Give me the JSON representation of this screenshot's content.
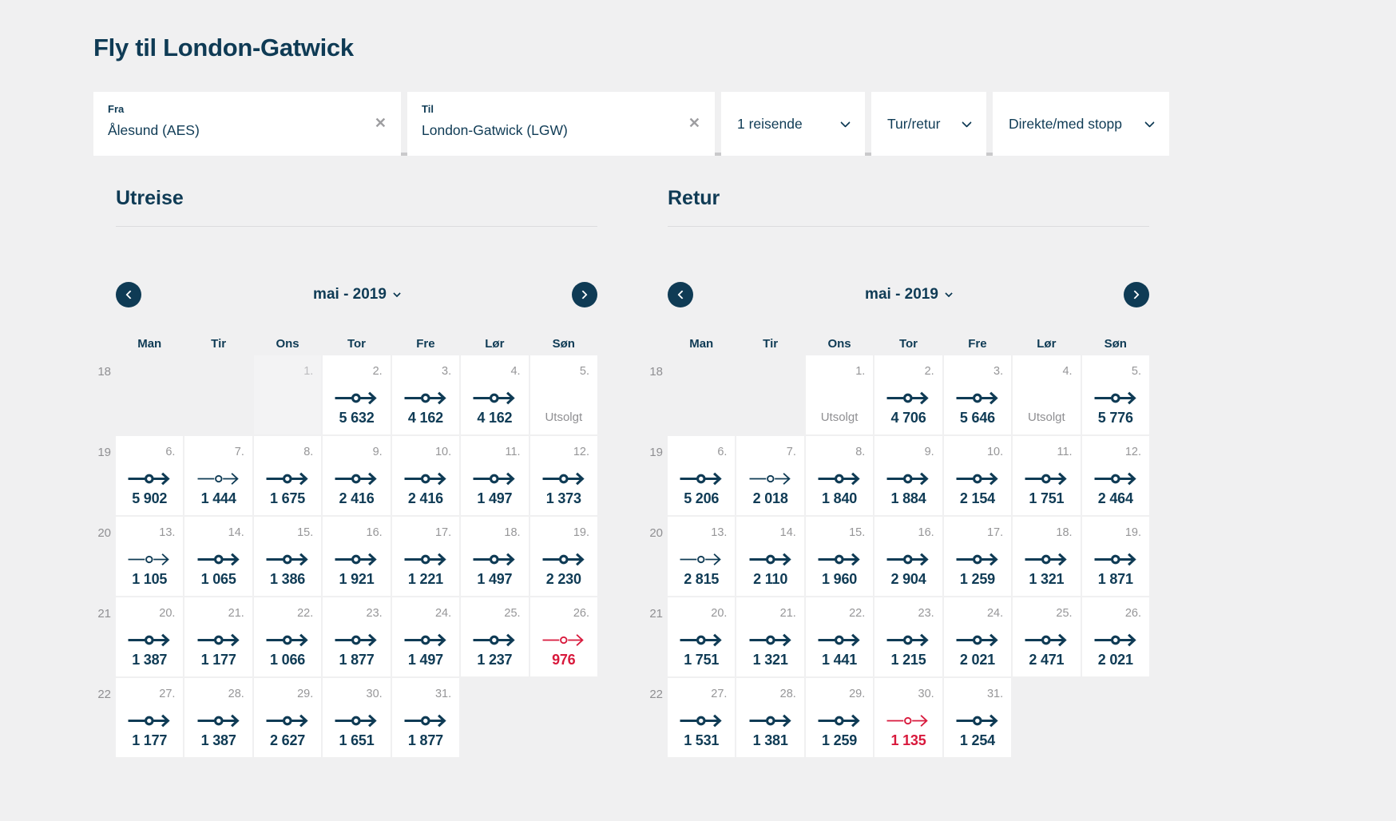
{
  "title": "Fly til London-Gatwick",
  "search": {
    "from_label": "Fra",
    "from_value": "Ålesund (AES)",
    "to_label": "Til",
    "to_value": "London-Gatwick (LGW)",
    "clear_icon": "✕",
    "passengers": "1 reisende",
    "trip_type": "Tur/retur",
    "stops": "Direkte/med stopp"
  },
  "colors": {
    "navy": "#0f3b55",
    "red": "#d8193c",
    "page_bg": "#f0f0f1",
    "cell_bg": "#ffffff",
    "gray_text": "#969698"
  },
  "calendars": [
    {
      "title": "Utreise",
      "month_label": "mai - 2019",
      "day_headers": [
        "Man",
        "Tir",
        "Ons",
        "Tor",
        "Fre",
        "Lør",
        "Søn"
      ],
      "weeks": [
        {
          "week": "18",
          "days": [
            {
              "type": "empty"
            },
            {
              "type": "empty"
            },
            {
              "type": "disabled",
              "day": "1."
            },
            {
              "type": "flight",
              "day": "2.",
              "price": "5 632",
              "icon": "bold"
            },
            {
              "type": "flight",
              "day": "3.",
              "price": "4 162",
              "icon": "bold"
            },
            {
              "type": "flight",
              "day": "4.",
              "price": "4 162",
              "icon": "bold"
            },
            {
              "type": "soldout",
              "day": "5.",
              "label": "Utsolgt"
            }
          ]
        },
        {
          "week": "19",
          "days": [
            {
              "type": "flight",
              "day": "6.",
              "price": "5 902",
              "icon": "bold"
            },
            {
              "type": "flight",
              "day": "7.",
              "price": "1 444",
              "icon": "thin"
            },
            {
              "type": "flight",
              "day": "8.",
              "price": "1 675",
              "icon": "bold"
            },
            {
              "type": "flight",
              "day": "9.",
              "price": "2 416",
              "icon": "bold"
            },
            {
              "type": "flight",
              "day": "10.",
              "price": "2 416",
              "icon": "bold"
            },
            {
              "type": "flight",
              "day": "11.",
              "price": "1 497",
              "icon": "bold"
            },
            {
              "type": "flight",
              "day": "12.",
              "price": "1 373",
              "icon": "bold"
            }
          ]
        },
        {
          "week": "20",
          "days": [
            {
              "type": "flight",
              "day": "13.",
              "price": "1 105",
              "icon": "thin"
            },
            {
              "type": "flight",
              "day": "14.",
              "price": "1 065",
              "icon": "bold"
            },
            {
              "type": "flight",
              "day": "15.",
              "price": "1 386",
              "icon": "bold"
            },
            {
              "type": "flight",
              "day": "16.",
              "price": "1 921",
              "icon": "bold"
            },
            {
              "type": "flight",
              "day": "17.",
              "price": "1 221",
              "icon": "bold"
            },
            {
              "type": "flight",
              "day": "18.",
              "price": "1 497",
              "icon": "bold"
            },
            {
              "type": "flight",
              "day": "19.",
              "price": "2 230",
              "icon": "bold"
            }
          ]
        },
        {
          "week": "21",
          "days": [
            {
              "type": "flight",
              "day": "20.",
              "price": "1 387",
              "icon": "bold"
            },
            {
              "type": "flight",
              "day": "21.",
              "price": "1 177",
              "icon": "bold"
            },
            {
              "type": "flight",
              "day": "22.",
              "price": "1 066",
              "icon": "bold"
            },
            {
              "type": "flight",
              "day": "23.",
              "price": "1 877",
              "icon": "bold"
            },
            {
              "type": "flight",
              "day": "24.",
              "price": "1 497",
              "icon": "bold"
            },
            {
              "type": "flight",
              "day": "25.",
              "price": "1 237",
              "icon": "bold"
            },
            {
              "type": "flight",
              "day": "26.",
              "price": "976",
              "icon": "thin",
              "selected": true
            }
          ]
        },
        {
          "week": "22",
          "days": [
            {
              "type": "flight",
              "day": "27.",
              "price": "1 177",
              "icon": "bold"
            },
            {
              "type": "flight",
              "day": "28.",
              "price": "1 387",
              "icon": "bold"
            },
            {
              "type": "flight",
              "day": "29.",
              "price": "2 627",
              "icon": "bold"
            },
            {
              "type": "flight",
              "day": "30.",
              "price": "1 651",
              "icon": "bold"
            },
            {
              "type": "flight",
              "day": "31.",
              "price": "1 877",
              "icon": "bold"
            },
            {
              "type": "empty"
            },
            {
              "type": "empty"
            }
          ]
        }
      ]
    },
    {
      "title": "Retur",
      "month_label": "mai - 2019",
      "day_headers": [
        "Man",
        "Tir",
        "Ons",
        "Tor",
        "Fre",
        "Lør",
        "Søn"
      ],
      "weeks": [
        {
          "week": "18",
          "days": [
            {
              "type": "empty"
            },
            {
              "type": "empty"
            },
            {
              "type": "soldout",
              "day": "1.",
              "label": "Utsolgt"
            },
            {
              "type": "flight",
              "day": "2.",
              "price": "4 706",
              "icon": "bold"
            },
            {
              "type": "flight",
              "day": "3.",
              "price": "5 646",
              "icon": "bold"
            },
            {
              "type": "soldout",
              "day": "4.",
              "label": "Utsolgt"
            },
            {
              "type": "flight",
              "day": "5.",
              "price": "5 776",
              "icon": "bold"
            }
          ]
        },
        {
          "week": "19",
          "days": [
            {
              "type": "flight",
              "day": "6.",
              "price": "5 206",
              "icon": "bold"
            },
            {
              "type": "flight",
              "day": "7.",
              "price": "2 018",
              "icon": "thin"
            },
            {
              "type": "flight",
              "day": "8.",
              "price": "1 840",
              "icon": "bold"
            },
            {
              "type": "flight",
              "day": "9.",
              "price": "1 884",
              "icon": "bold"
            },
            {
              "type": "flight",
              "day": "10.",
              "price": "2 154",
              "icon": "bold"
            },
            {
              "type": "flight",
              "day": "11.",
              "price": "1 751",
              "icon": "bold"
            },
            {
              "type": "flight",
              "day": "12.",
              "price": "2 464",
              "icon": "bold"
            }
          ]
        },
        {
          "week": "20",
          "days": [
            {
              "type": "flight",
              "day": "13.",
              "price": "2 815",
              "icon": "thin"
            },
            {
              "type": "flight",
              "day": "14.",
              "price": "2 110",
              "icon": "bold"
            },
            {
              "type": "flight",
              "day": "15.",
              "price": "1 960",
              "icon": "bold"
            },
            {
              "type": "flight",
              "day": "16.",
              "price": "2 904",
              "icon": "bold"
            },
            {
              "type": "flight",
              "day": "17.",
              "price": "1 259",
              "icon": "bold"
            },
            {
              "type": "flight",
              "day": "18.",
              "price": "1 321",
              "icon": "bold"
            },
            {
              "type": "flight",
              "day": "19.",
              "price": "1 871",
              "icon": "bold"
            }
          ]
        },
        {
          "week": "21",
          "days": [
            {
              "type": "flight",
              "day": "20.",
              "price": "1 751",
              "icon": "bold"
            },
            {
              "type": "flight",
              "day": "21.",
              "price": "1 321",
              "icon": "bold"
            },
            {
              "type": "flight",
              "day": "22.",
              "price": "1 441",
              "icon": "bold"
            },
            {
              "type": "flight",
              "day": "23.",
              "price": "1 215",
              "icon": "bold"
            },
            {
              "type": "flight",
              "day": "24.",
              "price": "2 021",
              "icon": "bold"
            },
            {
              "type": "flight",
              "day": "25.",
              "price": "2 471",
              "icon": "bold"
            },
            {
              "type": "flight",
              "day": "26.",
              "price": "2 021",
              "icon": "bold"
            }
          ]
        },
        {
          "week": "22",
          "days": [
            {
              "type": "flight",
              "day": "27.",
              "price": "1 531",
              "icon": "bold"
            },
            {
              "type": "flight",
              "day": "28.",
              "price": "1 381",
              "icon": "bold"
            },
            {
              "type": "flight",
              "day": "29.",
              "price": "1 259",
              "icon": "bold"
            },
            {
              "type": "flight",
              "day": "30.",
              "price": "1 135",
              "icon": "thin",
              "selected": true
            },
            {
              "type": "flight",
              "day": "31.",
              "price": "1 254",
              "icon": "bold"
            },
            {
              "type": "empty"
            },
            {
              "type": "empty"
            }
          ]
        }
      ]
    }
  ]
}
